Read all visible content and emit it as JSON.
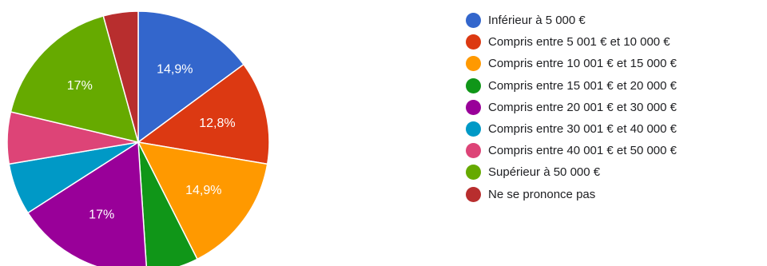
{
  "chart_data": {
    "type": "pie",
    "title": "",
    "categories": [
      "Inférieur à 5 000 €",
      "Compris entre 5 001 € et 10 000 €",
      "Compris entre 10 001 € et 15 000 €",
      "Compris entre 15 001 € et 20 000 €",
      "Compris entre 20 001 € et 30 000 €",
      "Compris entre 30 001 € et 40 000 €",
      "Compris entre 40 001 € et 50 000 €",
      "Supérieur à 50 000 €",
      "Ne se prononce pas"
    ],
    "values": [
      14.9,
      12.8,
      14.9,
      6.4,
      17.0,
      6.4,
      6.4,
      17.0,
      4.3
    ],
    "value_labels": [
      "14,9%",
      "12,8%",
      "14,9%",
      "",
      "17%",
      "",
      "",
      "17%",
      ""
    ],
    "colors": [
      "#3366cc",
      "#dc3912",
      "#ff9900",
      "#109618",
      "#990099",
      "#0099c6",
      "#dd4477",
      "#66aa00",
      "#b82e2e"
    ],
    "legend_position": "right",
    "start_angle_deg": 90,
    "direction": "clockwise"
  }
}
